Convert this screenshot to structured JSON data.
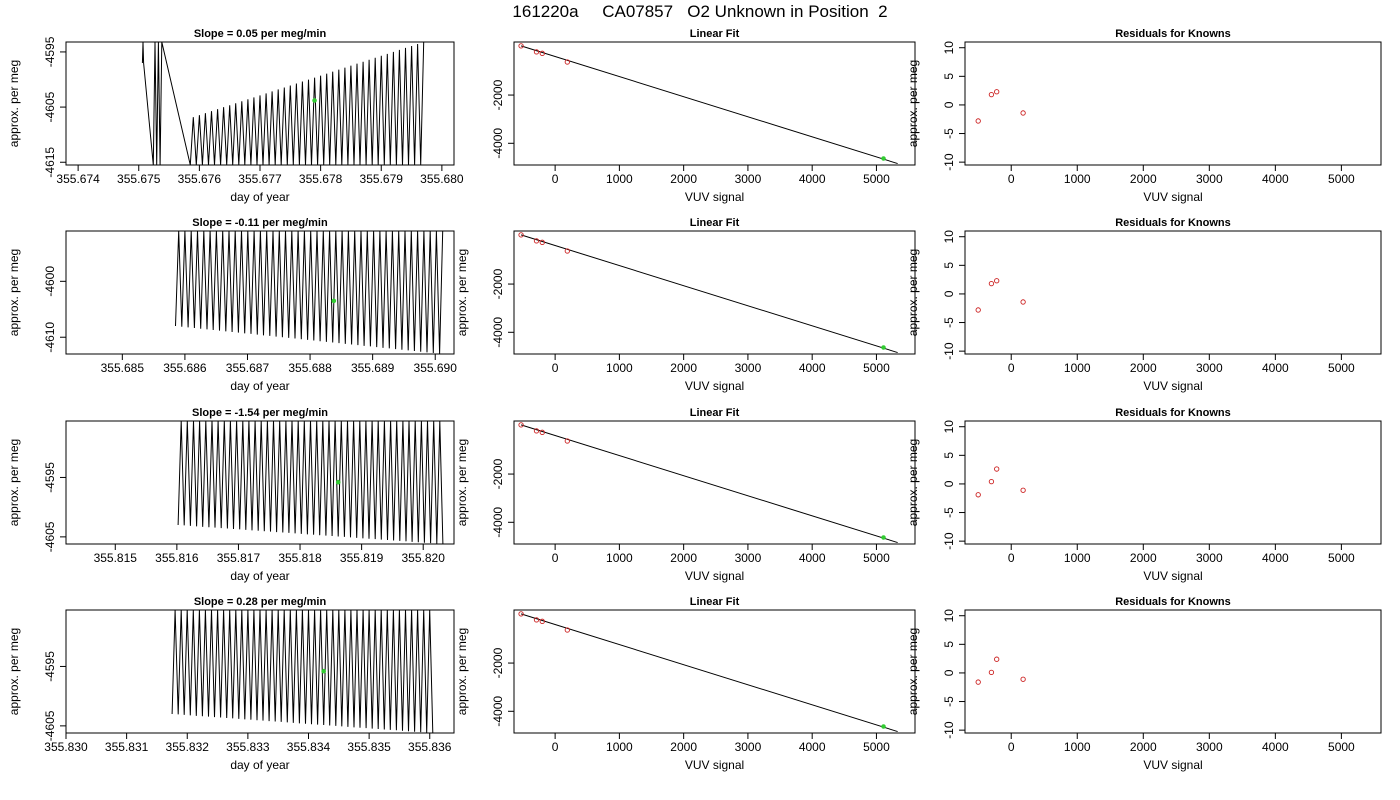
{
  "header": {
    "title": "161220a     CA07857   O2 Unknown in Position  2"
  },
  "colors": {
    "data_line": "#000000",
    "known_points": "#cc2222",
    "unknown_point": "#33cc33",
    "frame": "#000000"
  },
  "chart_data": [
    {
      "type": "line",
      "title": "Slope =  0.05  per meg/min",
      "xlabel": "day of year",
      "ylabel": "approx. per meg",
      "xlim": [
        355.6738,
        355.6802
      ],
      "ylim": [
        -4615.5,
        -4593.2
      ],
      "xticks": [
        355.674,
        355.675,
        355.676,
        355.677,
        355.678,
        355.679,
        355.68
      ],
      "xtick_labels": [
        "355.674",
        "355.675",
        "355.676",
        "355.677",
        "355.678",
        "355.679",
        "355.680"
      ],
      "yticks": [
        -4615,
        -4605,
        -4595
      ],
      "ytick_labels": [
        "-4615",
        "-4605",
        "-4595"
      ],
      "trace": {
        "blocks": [
          {
            "x_start": 355.67506,
            "x_end": 355.67508,
            "low": -4597,
            "high": -4593.2,
            "step": 1e-05
          },
          {
            "x_start": 355.67524,
            "x_end": 355.67538,
            "low": -4615.5,
            "high": -4593.2,
            "step": 3e-05
          },
          {
            "x_start": 355.67585,
            "x_end": 355.6797,
            "low_from": -4615.5,
            "low_to": -4615.5,
            "high_from": -4607,
            "high_to": -4593.2,
            "step": 5e-05
          }
        ]
      },
      "unknown_point": {
        "x": 355.6779,
        "y": -4603.8
      }
    },
    {
      "type": "scatter",
      "title": "Linear Fit",
      "xlabel": "VUV signal",
      "ylabel": "",
      "xlim": [
        -640,
        5600
      ],
      "ylim": [
        -4900,
        200
      ],
      "xticks": [
        0,
        1000,
        2000,
        3000,
        4000,
        5000
      ],
      "xtick_labels": [
        "0",
        "1000",
        "2000",
        "3000",
        "4000",
        "5000"
      ],
      "yticks": [
        -4000,
        -2000
      ],
      "ytick_labels": [
        "-4000",
        "-2000"
      ],
      "known_points": {
        "x": [
          -530,
          -290,
          -200,
          190
        ],
        "y": [
          40,
          -210,
          -270,
          -630
        ]
      },
      "unknown_point": {
        "x": 5110,
        "y": -4630
      },
      "fit_line": {
        "x": [
          -530,
          5330
        ],
        "y": [
          40,
          -4840
        ]
      }
    },
    {
      "type": "scatter",
      "title": "Residuals for Knowns",
      "xlabel": "VUV signal",
      "ylabel": "approx. per meg",
      "xlim": [
        -700,
        5600
      ],
      "ylim": [
        -10.5,
        11
      ],
      "xticks": [
        0,
        1000,
        2000,
        3000,
        4000,
        5000
      ],
      "xtick_labels": [
        "0",
        "1000",
        "2000",
        "3000",
        "4000",
        "5000"
      ],
      "yticks": [
        -10,
        -5,
        0,
        5,
        10
      ],
      "ytick_labels": [
        "-10",
        "-5",
        "0",
        "5",
        "10"
      ],
      "known_points": {
        "x": [
          -500,
          -300,
          -220,
          180
        ],
        "y": [
          -2.8,
          1.8,
          2.3,
          -1.4
        ]
      }
    },
    {
      "type": "line",
      "title": "Slope =  -0.11  per meg/min",
      "xlabel": "day of year",
      "ylabel": "approx. per meg",
      "xlim": [
        355.6841,
        355.6903
      ],
      "ylim": [
        -4613,
        -4591
      ],
      "xticks": [
        355.685,
        355.686,
        355.687,
        355.688,
        355.689,
        355.69
      ],
      "xtick_labels": [
        "355.685",
        "355.686",
        "355.687",
        "355.688",
        "355.689",
        "355.690"
      ],
      "yticks": [
        -4610,
        -4600
      ],
      "ytick_labels": [
        "-4610",
        "-4600"
      ],
      "trace": {
        "blocks": [
          {
            "x_start": 355.68585,
            "x_end": 355.69012,
            "low_from": -4608,
            "low_to": -4613,
            "high_from": -4591,
            "high_to": -4591,
            "step": 5e-05
          }
        ]
      },
      "unknown_point": {
        "x": 355.68838,
        "y": -4603.5
      }
    },
    {
      "type": "scatter",
      "title": "Linear Fit",
      "xlabel": "VUV signal",
      "ylabel": "approx. per meg",
      "xlim": [
        -640,
        5600
      ],
      "ylim": [
        -4900,
        200
      ],
      "xticks": [
        0,
        1000,
        2000,
        3000,
        4000,
        5000
      ],
      "xtick_labels": [
        "0",
        "1000",
        "2000",
        "3000",
        "4000",
        "5000"
      ],
      "yticks": [
        -4000,
        -2000
      ],
      "ytick_labels": [
        "-4000",
        "-2000"
      ],
      "known_points": {
        "x": [
          -530,
          -290,
          -200,
          190
        ],
        "y": [
          40,
          -210,
          -270,
          -630
        ]
      },
      "unknown_point": {
        "x": 5110,
        "y": -4630
      },
      "fit_line": {
        "x": [
          -530,
          5330
        ],
        "y": [
          40,
          -4840
        ]
      }
    },
    {
      "type": "scatter",
      "title": "Residuals for Knowns",
      "xlabel": "VUV signal",
      "ylabel": "approx. per meg",
      "xlim": [
        -700,
        5600
      ],
      "ylim": [
        -10.5,
        11
      ],
      "xticks": [
        0,
        1000,
        2000,
        3000,
        4000,
        5000
      ],
      "xtick_labels": [
        "0",
        "1000",
        "2000",
        "3000",
        "4000",
        "5000"
      ],
      "yticks": [
        -10,
        -5,
        0,
        5,
        10
      ],
      "ytick_labels": [
        "-10",
        "-5",
        "0",
        "5",
        "10"
      ],
      "known_points": {
        "x": [
          -500,
          -300,
          -220,
          180
        ],
        "y": [
          -2.8,
          1.8,
          2.3,
          -1.4
        ]
      }
    },
    {
      "type": "line",
      "title": "Slope =  -1.54  per meg/min",
      "xlabel": "day of year",
      "ylabel": "approx. per meg",
      "xlim": [
        355.8142,
        355.8205
      ],
      "ylim": [
        -4606.2,
        -4585.5
      ],
      "xticks": [
        355.815,
        355.816,
        355.817,
        355.818,
        355.819,
        355.82
      ],
      "xtick_labels": [
        "355.815",
        "355.816",
        "355.817",
        "355.818",
        "355.819",
        "355.820"
      ],
      "yticks": [
        -4605,
        -4595
      ],
      "ytick_labels": [
        "-4605",
        "-4595"
      ],
      "trace": {
        "blocks": [
          {
            "x_start": 355.81602,
            "x_end": 355.82032,
            "low_from": -4603,
            "low_to": -4606.2,
            "high_from": -4585.5,
            "high_to": -4585.5,
            "step": 5e-05
          }
        ]
      },
      "unknown_point": {
        "x": 355.81862,
        "y": -4595.8
      }
    },
    {
      "type": "scatter",
      "title": "Linear Fit",
      "xlabel": "VUV signal",
      "ylabel": "approx. per meg",
      "xlim": [
        -640,
        5600
      ],
      "ylim": [
        -4900,
        200
      ],
      "xticks": [
        0,
        1000,
        2000,
        3000,
        4000,
        5000
      ],
      "xtick_labels": [
        "0",
        "1000",
        "2000",
        "3000",
        "4000",
        "5000"
      ],
      "yticks": [
        -4000,
        -2000
      ],
      "ytick_labels": [
        "-4000",
        "-2000"
      ],
      "known_points": {
        "x": [
          -530,
          -290,
          -200,
          190
        ],
        "y": [
          40,
          -210,
          -270,
          -630
        ]
      },
      "unknown_point": {
        "x": 5110,
        "y": -4630
      },
      "fit_line": {
        "x": [
          -530,
          5330
        ],
        "y": [
          40,
          -4840
        ]
      }
    },
    {
      "type": "scatter",
      "title": "Residuals for Knowns",
      "xlabel": "VUV signal",
      "ylabel": "approx. per meg",
      "xlim": [
        -700,
        5600
      ],
      "ylim": [
        -10.5,
        11
      ],
      "xticks": [
        0,
        1000,
        2000,
        3000,
        4000,
        5000
      ],
      "xtick_labels": [
        "0",
        "1000",
        "2000",
        "3000",
        "4000",
        "5000"
      ],
      "yticks": [
        -10,
        -5,
        0,
        5,
        10
      ],
      "ytick_labels": [
        "-10",
        "-5",
        "0",
        "5",
        "10"
      ],
      "known_points": {
        "x": [
          -500,
          -300,
          -220,
          180
        ],
        "y": [
          -1.9,
          0.4,
          2.6,
          -1.1
        ]
      }
    },
    {
      "type": "line",
      "title": "Slope =  0.28  per meg/min",
      "xlabel": "day of year",
      "ylabel": "approx. per meg",
      "xlim": [
        355.83,
        355.8364
      ],
      "ylim": [
        -4606.2,
        -4585.5
      ],
      "xticks": [
        355.83,
        355.831,
        355.832,
        355.833,
        355.834,
        355.835,
        355.836
      ],
      "xtick_labels": [
        "355.830",
        "355.831",
        "355.832",
        "355.833",
        "355.834",
        "355.835",
        "355.836"
      ],
      "yticks": [
        -4605,
        -4595
      ],
      "ytick_labels": [
        "-4605",
        "-4595"
      ],
      "trace": {
        "blocks": [
          {
            "x_start": 355.83175,
            "x_end": 355.83605,
            "low_from": -4603,
            "low_to": -4606.2,
            "high_from": -4585.5,
            "high_to": -4585.5,
            "step": 5e-05
          }
        ]
      },
      "unknown_point": {
        "x": 355.83425,
        "y": -4595.8
      }
    },
    {
      "type": "scatter",
      "title": "Linear Fit",
      "xlabel": "VUV signal",
      "ylabel": "approx. per meg",
      "xlim": [
        -640,
        5600
      ],
      "ylim": [
        -4900,
        200
      ],
      "xticks": [
        0,
        1000,
        2000,
        3000,
        4000,
        5000
      ],
      "xtick_labels": [
        "0",
        "1000",
        "2000",
        "3000",
        "4000",
        "5000"
      ],
      "yticks": [
        -4000,
        -2000
      ],
      "ytick_labels": [
        "-4000",
        "-2000"
      ],
      "known_points": {
        "x": [
          -530,
          -290,
          -200,
          190
        ],
        "y": [
          40,
          -210,
          -270,
          -630
        ]
      },
      "unknown_point": {
        "x": 5110,
        "y": -4630
      },
      "fit_line": {
        "x": [
          -530,
          5330
        ],
        "y": [
          40,
          -4840
        ]
      }
    },
    {
      "type": "scatter",
      "title": "Residuals for Knowns",
      "xlabel": "VUV signal",
      "ylabel": "approx. per meg",
      "xlim": [
        -700,
        5600
      ],
      "ylim": [
        -10.5,
        11
      ],
      "xticks": [
        0,
        1000,
        2000,
        3000,
        4000,
        5000
      ],
      "xtick_labels": [
        "0",
        "1000",
        "2000",
        "3000",
        "4000",
        "5000"
      ],
      "yticks": [
        -10,
        -5,
        0,
        5,
        10
      ],
      "ytick_labels": [
        "-10",
        "-5",
        "0",
        "5",
        "10"
      ],
      "known_points": {
        "x": [
          -500,
          -300,
          -220,
          180
        ],
        "y": [
          -1.6,
          0.1,
          2.4,
          -1.1
        ]
      }
    }
  ]
}
